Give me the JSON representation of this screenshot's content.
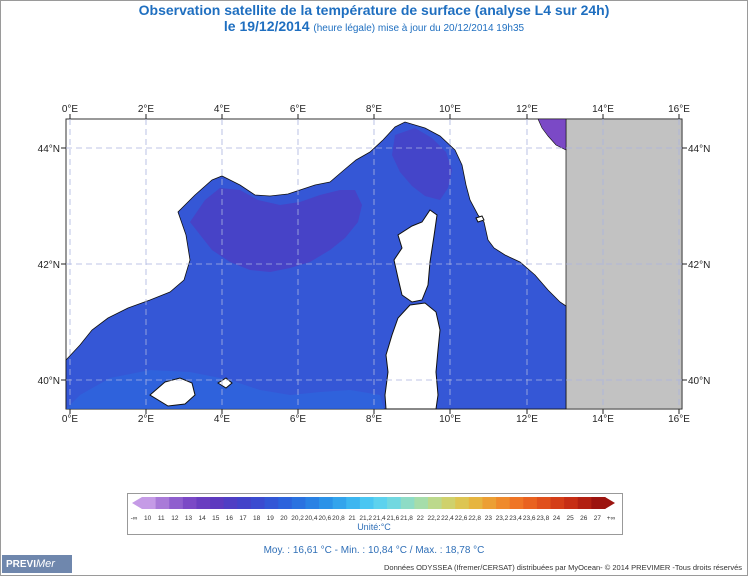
{
  "title": {
    "line1": "Observation satellite de la température de surface (analyse L4 sur 24h)",
    "line2_date": "le 19/12/2014",
    "line2_note": "(heure légale) mise à jour du 20/12/2014 19h35"
  },
  "axes": {
    "lon_labels": [
      "0°E",
      "2°E",
      "4°E",
      "6°E",
      "8°E",
      "10°E",
      "12°E",
      "14°E",
      "16°E"
    ],
    "lat_labels": [
      "44°N",
      "42°N",
      "40°N"
    ]
  },
  "legend": {
    "ticks": [
      "-∞",
      "10",
      "11",
      "12",
      "13",
      "14",
      "15",
      "16",
      "17",
      "18",
      "19",
      "20",
      "20,2",
      "20,4",
      "20,6",
      "20,8",
      "21",
      "21,2",
      "21,4",
      "21,6",
      "21,8",
      "22",
      "22,2",
      "22,4",
      "22,6",
      "22,8",
      "23",
      "23,2",
      "23,4",
      "23,6",
      "23,8",
      "24",
      "25",
      "26",
      "27",
      "+∞"
    ],
    "colors": [
      "#c59be6",
      "#a97ad8",
      "#8f5fce",
      "#7b49c6",
      "#6a3ec0",
      "#5d3abf",
      "#4f3ec4",
      "#4343c9",
      "#3b4bd0",
      "#3357d6",
      "#2c63dc",
      "#2a72e0",
      "#2a82e4",
      "#2b92e8",
      "#33a4ec",
      "#3db6f0",
      "#4ac6f2",
      "#5dd2ee",
      "#72d8e0",
      "#8edcc6",
      "#a6ddaa",
      "#bcd98c",
      "#cfd16c",
      "#ddc552",
      "#e6b540",
      "#ec9f34",
      "#ef8a2c",
      "#ef7526",
      "#e96220",
      "#e0501c",
      "#d43e18",
      "#c62e15",
      "#b22012",
      "#9c140f"
    ],
    "unit": "Unité:°C"
  },
  "stats": {
    "text": "Moy. : 16,61 °C   -   Min. : 10,84 °C / Max. : 18,78 °C"
  },
  "logo": {
    "prefix": "PREVI",
    "suffix": "Mer"
  },
  "credits": "Données ODYSSEA (Ifremer/CERSAT) distribuées par MyOcean- © 2014 PREVIMER -Tous droits réservés",
  "colors": {
    "sea_base": "#3558d4",
    "sea_cold": "#4a3cc2",
    "land_gray": "#c0c0c0",
    "grid": "#aab4e0"
  }
}
